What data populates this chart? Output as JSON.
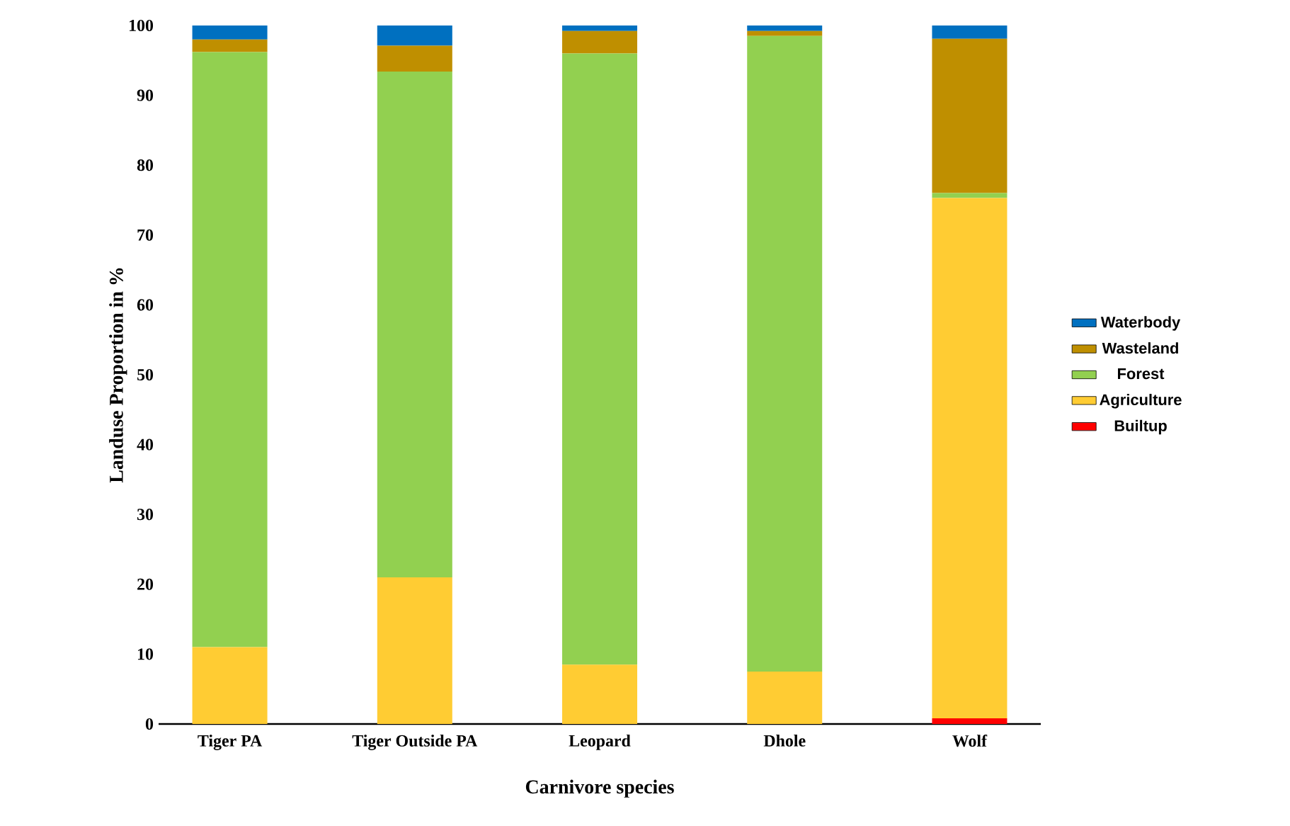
{
  "chart_data": {
    "type": "bar",
    "stacked": true,
    "xlabel": "Carnivore species",
    "ylabel": "Landuse Proportion in %",
    "categories": [
      "Tiger PA",
      "Tiger Outside PA",
      "Leopard",
      "Dhole",
      "Wolf"
    ],
    "series": [
      {
        "name": "Builtup",
        "color": "#ff0000",
        "values": [
          0,
          0,
          0,
          0,
          0.8
        ]
      },
      {
        "name": "Agriculture",
        "color": "#ffcc33",
        "values": [
          11,
          21,
          8.5,
          7.5,
          74.5
        ]
      },
      {
        "name": "Forest",
        "color": "#92d050",
        "values": [
          85.2,
          72.4,
          87.5,
          91,
          0.7
        ]
      },
      {
        "name": "Wasteland",
        "color": "#bf8f00",
        "values": [
          1.8,
          3.7,
          3.2,
          0.7,
          22.1
        ]
      },
      {
        "name": "Waterbody",
        "color": "#0070c0",
        "values": [
          2,
          2.9,
          0.8,
          0.8,
          1.9
        ]
      }
    ],
    "ylim": [
      0,
      100
    ],
    "yticks": [
      0,
      10,
      20,
      30,
      40,
      50,
      60,
      70,
      80,
      90,
      100
    ],
    "grid": false,
    "legend": "right"
  }
}
